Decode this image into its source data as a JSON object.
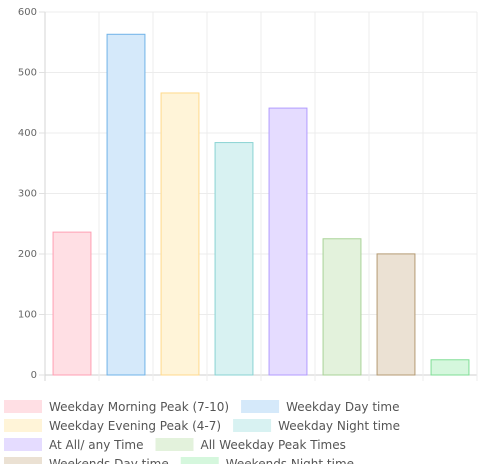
{
  "chart_data": {
    "type": "bar",
    "ylim": [
      0,
      600
    ],
    "yticks": [
      0,
      100,
      200,
      300,
      400,
      500,
      600
    ],
    "grid": true,
    "legend_position": "bottom",
    "bars": [
      {
        "label": "Weekday Morning Peak (7-10)",
        "value": 237,
        "fill": "#ffdfe4",
        "stroke": "#ff9fb3"
      },
      {
        "label": "Weekday Day time",
        "value": 564,
        "fill": "#d5e9fa",
        "stroke": "#6fb3e8"
      },
      {
        "label": "Weekday Evening Peak (4-7)",
        "value": 467,
        "fill": "#fff4d8",
        "stroke": "#ffd98c"
      },
      {
        "label": "Weekday Night time",
        "value": 385,
        "fill": "#d8f2f2",
        "stroke": "#89d3d3"
      },
      {
        "label": "At All/ any Time",
        "value": 442,
        "fill": "#e5dcff",
        "stroke": "#b29bff"
      },
      {
        "label": "All Weekday Peak Times",
        "value": 226,
        "fill": "#e3f2dc",
        "stroke": "#a9d397"
      },
      {
        "label": "Weekends Day time",
        "value": 201,
        "fill": "#ebe1d3",
        "stroke": "#b49a73"
      },
      {
        "label": "Weekends Night time",
        "value": 26,
        "fill": "#d5f7dd",
        "stroke": "#7fde95"
      }
    ]
  }
}
